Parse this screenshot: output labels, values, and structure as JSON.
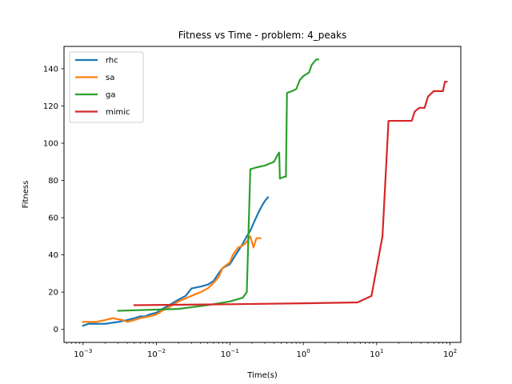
{
  "chart_data": {
    "type": "line",
    "title": "Fitness vs Time - problem: 4_peaks",
    "xlabel": "Time(s)",
    "ylabel": "Fitness",
    "xscale": "log",
    "xlim": [
      0.00055,
      140
    ],
    "ylim": [
      -7,
      152
    ],
    "grid": false,
    "legend_position": "top-left",
    "xticks": [
      {
        "value": 0.001,
        "base": "10",
        "exp": "−3"
      },
      {
        "value": 0.01,
        "base": "10",
        "exp": "−2"
      },
      {
        "value": 0.1,
        "base": "10",
        "exp": "−1"
      },
      {
        "value": 1,
        "base": "10",
        "exp": "0"
      },
      {
        "value": 10,
        "base": "10",
        "exp": "1"
      },
      {
        "value": 100,
        "base": "10",
        "exp": "2"
      }
    ],
    "yticks": [
      {
        "value": 0,
        "label": "0"
      },
      {
        "value": 20,
        "label": "20"
      },
      {
        "value": 40,
        "label": "40"
      },
      {
        "value": 60,
        "label": "60"
      },
      {
        "value": 80,
        "label": "80"
      },
      {
        "value": 100,
        "label": "100"
      },
      {
        "value": 120,
        "label": "120"
      },
      {
        "value": 140,
        "label": "140"
      }
    ],
    "series": [
      {
        "name": "rhc",
        "color": "#1f77b4",
        "points": [
          [
            0.001,
            2
          ],
          [
            0.0012,
            3
          ],
          [
            0.002,
            3
          ],
          [
            0.003,
            4
          ],
          [
            0.004,
            5
          ],
          [
            0.005,
            6
          ],
          [
            0.006,
            7
          ],
          [
            0.007,
            7
          ],
          [
            0.008,
            8
          ],
          [
            0.01,
            9
          ],
          [
            0.012,
            11
          ],
          [
            0.015,
            13
          ],
          [
            0.02,
            16
          ],
          [
            0.025,
            18
          ],
          [
            0.03,
            22
          ],
          [
            0.04,
            23
          ],
          [
            0.05,
            24
          ],
          [
            0.06,
            26
          ],
          [
            0.07,
            30
          ],
          [
            0.08,
            33
          ],
          [
            0.1,
            35
          ],
          [
            0.12,
            40
          ],
          [
            0.15,
            46
          ],
          [
            0.17,
            50
          ],
          [
            0.19,
            53
          ],
          [
            0.21,
            57
          ],
          [
            0.24,
            62
          ],
          [
            0.27,
            66
          ],
          [
            0.3,
            69
          ],
          [
            0.33,
            71
          ]
        ]
      },
      {
        "name": "sa",
        "color": "#ff7f0e",
        "points": [
          [
            0.001,
            4
          ],
          [
            0.0015,
            4
          ],
          [
            0.002,
            5
          ],
          [
            0.0025,
            6
          ],
          [
            0.0035,
            5
          ],
          [
            0.004,
            4
          ],
          [
            0.005,
            5
          ],
          [
            0.006,
            6
          ],
          [
            0.008,
            7
          ],
          [
            0.01,
            8
          ],
          [
            0.012,
            10
          ],
          [
            0.015,
            12
          ],
          [
            0.02,
            15
          ],
          [
            0.03,
            18
          ],
          [
            0.04,
            20
          ],
          [
            0.05,
            22
          ],
          [
            0.06,
            25
          ],
          [
            0.07,
            28
          ],
          [
            0.08,
            33
          ],
          [
            0.1,
            36
          ],
          [
            0.11,
            40
          ],
          [
            0.13,
            44
          ],
          [
            0.15,
            45
          ],
          [
            0.17,
            47
          ],
          [
            0.19,
            50
          ],
          [
            0.21,
            44
          ],
          [
            0.23,
            49
          ],
          [
            0.26,
            49
          ]
        ]
      },
      {
        "name": "ga",
        "color": "#2ca02c",
        "points": [
          [
            0.003,
            10
          ],
          [
            0.02,
            11
          ],
          [
            0.05,
            13
          ],
          [
            0.1,
            15
          ],
          [
            0.15,
            17
          ],
          [
            0.17,
            20
          ],
          [
            0.19,
            86
          ],
          [
            0.23,
            87
          ],
          [
            0.3,
            88
          ],
          [
            0.4,
            90
          ],
          [
            0.45,
            94
          ],
          [
            0.47,
            95
          ],
          [
            0.48,
            81
          ],
          [
            0.55,
            82
          ],
          [
            0.58,
            82
          ],
          [
            0.6,
            127
          ],
          [
            0.7,
            128
          ],
          [
            0.8,
            129
          ],
          [
            0.9,
            134
          ],
          [
            1.0,
            136
          ],
          [
            1.2,
            138
          ],
          [
            1.3,
            142
          ],
          [
            1.5,
            145
          ],
          [
            1.6,
            145
          ]
        ]
      },
      {
        "name": "mimic",
        "color": "#d62728",
        "points": [
          [
            0.005,
            13
          ],
          [
            0.1,
            13.5
          ],
          [
            1.0,
            14
          ],
          [
            5.5,
            14.5
          ],
          [
            8.5,
            18
          ],
          [
            12.0,
            50
          ],
          [
            14.5,
            112
          ],
          [
            20,
            112
          ],
          [
            30,
            112
          ],
          [
            33,
            117
          ],
          [
            38,
            119
          ],
          [
            45,
            119
          ],
          [
            50,
            125
          ],
          [
            60,
            128
          ],
          [
            70,
            128
          ],
          [
            80,
            128
          ],
          [
            85,
            133
          ],
          [
            90,
            133
          ]
        ]
      }
    ]
  }
}
